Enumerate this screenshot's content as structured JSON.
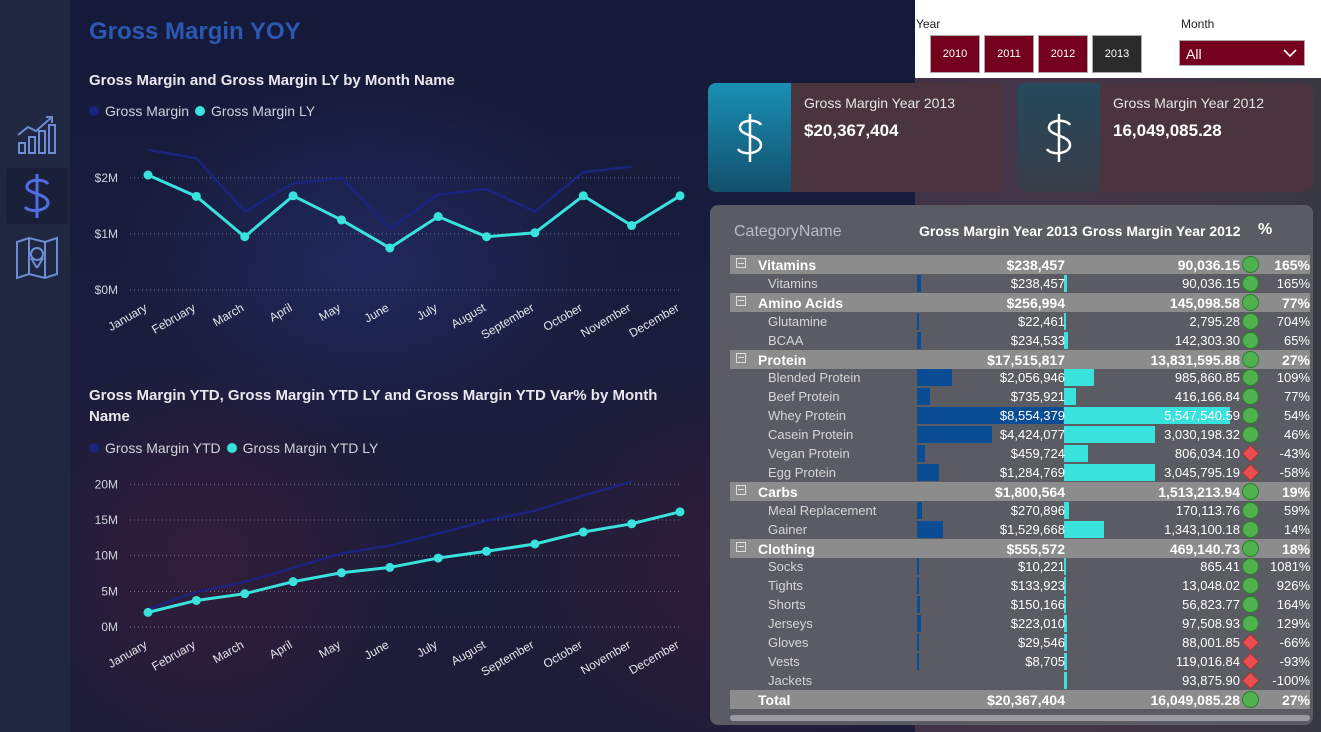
{
  "page": {
    "title": "Gross Margin YOY"
  },
  "nav": {
    "items": [
      {
        "icon": "chart-growth-icon"
      },
      {
        "icon": "dollar-icon"
      },
      {
        "icon": "map-icon"
      }
    ]
  },
  "chart1": {
    "title": "Gross Margin and Gross Margin LY by Month Name",
    "legend": [
      "Gross Margin",
      "Gross Margin LY"
    ],
    "chart_data": {
      "type": "line",
      "categories": [
        "January",
        "February",
        "March",
        "April",
        "May",
        "June",
        "July",
        "August",
        "September",
        "October",
        "November",
        "December"
      ],
      "series": [
        {
          "name": "Gross Margin",
          "color": "#1a237e",
          "values": [
            2.5,
            2.35,
            1.4,
            1.9,
            2.0,
            1.1,
            1.7,
            1.8,
            1.4,
            2.1,
            2.2,
            null
          ]
        },
        {
          "name": "Gross Margin LY",
          "color": "#3ae2de",
          "values": [
            2.05,
            1.67,
            0.95,
            1.68,
            1.25,
            0.75,
            1.31,
            0.95,
            1.02,
            1.68,
            1.15,
            1.68
          ]
        }
      ],
      "yticks": [
        "$0M",
        "$1M",
        "$2M"
      ],
      "ylim": [
        0,
        2.8
      ]
    }
  },
  "chart2": {
    "title": "Gross Margin YTD, Gross Margin YTD LY and Gross Margin YTD Var% by Month Name",
    "legend": [
      "Gross Margin YTD",
      "Gross Margin YTD LY"
    ],
    "chart_data": {
      "type": "line",
      "categories": [
        "January",
        "February",
        "March",
        "April",
        "May",
        "June",
        "July",
        "August",
        "September",
        "October",
        "November",
        "December"
      ],
      "series": [
        {
          "name": "Gross Margin YTD",
          "color": "#1a237e",
          "values": [
            2.5,
            4.9,
            6.3,
            8.3,
            10.3,
            11.4,
            13.1,
            14.9,
            16.3,
            18.4,
            20.4,
            null
          ]
        },
        {
          "name": "Gross Margin YTD LY",
          "color": "#3ae2de",
          "values": [
            2.05,
            3.72,
            4.67,
            6.35,
            7.6,
            8.35,
            9.66,
            10.61,
            11.63,
            13.31,
            14.46,
            16.14
          ]
        }
      ],
      "yticks": [
        "0M",
        "5M",
        "10M",
        "15M",
        "20M"
      ],
      "ylim": [
        0,
        22
      ]
    }
  },
  "slicers": {
    "year_label": "Year",
    "years": [
      "2010",
      "2011",
      "2012",
      "2013"
    ],
    "month_label": "Month",
    "month_value": "All"
  },
  "kpis": [
    {
      "label": "Gross Margin Year 2013",
      "value": "$20,367,404"
    },
    {
      "label": "Gross Margin Year 2012",
      "value": "16,049,085.28"
    }
  ],
  "table": {
    "headers": {
      "category": "CategoryName",
      "y2013": "Gross Margin Year 2013",
      "y2012": "Gross Margin Year 2012",
      "pct": "%"
    },
    "rows": [
      {
        "type": "group",
        "name": "Vitamins",
        "v13": "$238,457",
        "v12": "90,036.15",
        "pct": "165%",
        "trend": "up"
      },
      {
        "type": "item",
        "name": "Vitamins",
        "v13": "$238,457",
        "v12": "90,036.15",
        "pct": "165%",
        "trend": "up",
        "f13": 0.028,
        "f12": 0.016
      },
      {
        "type": "group",
        "name": "Amino Acids",
        "v13": "$256,994",
        "v12": "145,098.58",
        "pct": "77%",
        "trend": "up"
      },
      {
        "type": "item",
        "name": "Glutamine",
        "v13": "$22,461",
        "v12": "2,795.28",
        "pct": "704%",
        "trend": "up",
        "f13": 0.003,
        "f12": 0.001
      },
      {
        "type": "item",
        "name": "BCAA",
        "v13": "$234,533",
        "v12": "142,303.30",
        "pct": "65%",
        "trend": "up",
        "f13": 0.027,
        "f12": 0.026
      },
      {
        "type": "group",
        "name": "Protein",
        "v13": "$17,515,817",
        "v12": "13,831,595.88",
        "pct": "27%",
        "trend": "up"
      },
      {
        "type": "item",
        "name": "Blended Protein",
        "v13": "$2,056,946",
        "v12": "985,860.85",
        "pct": "109%",
        "trend": "up",
        "f13": 0.24,
        "f12": 0.178
      },
      {
        "type": "item",
        "name": "Beef Protein",
        "v13": "$735,921",
        "v12": "416,166.84",
        "pct": "77%",
        "trend": "up",
        "f13": 0.086,
        "f12": 0.075
      },
      {
        "type": "item",
        "name": "Whey Protein",
        "v13": "$8,554,379",
        "v12": "5,547,540.59",
        "pct": "54%",
        "trend": "up",
        "f13": 1.0,
        "f12": 1.0
      },
      {
        "type": "item",
        "name": "Casein Protein",
        "v13": "$4,424,077",
        "v12": "3,030,198.32",
        "pct": "46%",
        "trend": "up",
        "f13": 0.517,
        "f12": 0.546
      },
      {
        "type": "item",
        "name": "Vegan Protein",
        "v13": "$459,724",
        "v12": "806,034.10",
        "pct": "-43%",
        "trend": "down",
        "f13": 0.054,
        "f12": 0.145
      },
      {
        "type": "item",
        "name": "Egg Protein",
        "v13": "$1,284,769",
        "v12": "3,045,795.19",
        "pct": "-58%",
        "trend": "down",
        "f13": 0.15,
        "f12": 0.549
      },
      {
        "type": "group",
        "name": "Carbs",
        "v13": "$1,800,564",
        "v12": "1,513,213.94",
        "pct": "19%",
        "trend": "up"
      },
      {
        "type": "item",
        "name": "Meal Replacement",
        "v13": "$270,896",
        "v12": "170,113.76",
        "pct": "59%",
        "trend": "up",
        "f13": 0.032,
        "f12": 0.031
      },
      {
        "type": "item",
        "name": "Gainer",
        "v13": "$1,529,668",
        "v12": "1,343,100.18",
        "pct": "14%",
        "trend": "up",
        "f13": 0.179,
        "f12": 0.242
      },
      {
        "type": "group",
        "name": "Clothing",
        "v13": "$555,572",
        "v12": "469,140.73",
        "pct": "18%",
        "trend": "up"
      },
      {
        "type": "item",
        "name": "Socks",
        "v13": "$10,221",
        "v12": "865.41",
        "pct": "1081%",
        "trend": "up",
        "f13": 0.0012,
        "f12": 0.0002
      },
      {
        "type": "item",
        "name": "Tights",
        "v13": "$133,923",
        "v12": "13,048.02",
        "pct": "926%",
        "trend": "up",
        "f13": 0.016,
        "f12": 0.0024
      },
      {
        "type": "item",
        "name": "Shorts",
        "v13": "$150,166",
        "v12": "56,823.77",
        "pct": "164%",
        "trend": "up",
        "f13": 0.018,
        "f12": 0.01
      },
      {
        "type": "item",
        "name": "Jerseys",
        "v13": "$223,010",
        "v12": "97,508.93",
        "pct": "129%",
        "trend": "up",
        "f13": 0.026,
        "f12": 0.018
      },
      {
        "type": "item",
        "name": "Gloves",
        "v13": "$29,546",
        "v12": "88,001.85",
        "pct": "-66%",
        "trend": "down",
        "f13": 0.0035,
        "f12": 0.016
      },
      {
        "type": "item",
        "name": "Vests",
        "v13": "$8,705",
        "v12": "119,016.84",
        "pct": "-93%",
        "trend": "down",
        "f13": 0.001,
        "f12": 0.021
      },
      {
        "type": "item",
        "name": "Jackets",
        "v13": "",
        "v12": "93,875.90",
        "pct": "-100%",
        "trend": "down",
        "f13": 0,
        "f12": 0.017
      },
      {
        "type": "total",
        "name": "Total",
        "v13": "$20,367,404",
        "v12": "16,049,085.28",
        "pct": "27%",
        "trend": "up"
      }
    ]
  },
  "colors": {
    "accent_dark": "#1a237e",
    "accent_cyan": "#3ae2de",
    "slicer_red": "#75001d",
    "bar_2013": "#0b4d94",
    "title_blue": "#2a58b3"
  }
}
